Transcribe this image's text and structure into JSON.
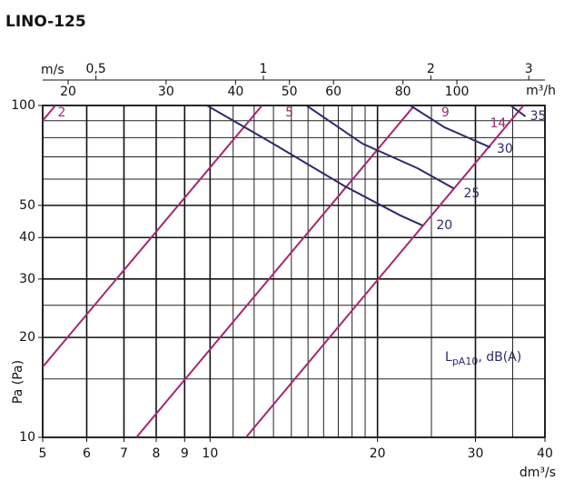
{
  "chart_data": {
    "type": "line",
    "title": "LINO-125",
    "x_label": "dm³/s",
    "y_label": "Pa (Pa)",
    "x2_label": "m/s",
    "x3_label": "m³/h",
    "log_x": true,
    "log_y": true,
    "grid": true,
    "xlim": [
      5,
      40
    ],
    "xticks": [
      5,
      6,
      7,
      8,
      9,
      10,
      20,
      30,
      40
    ],
    "xminor": [
      11,
      12,
      13,
      14,
      15,
      16,
      17,
      18,
      19,
      25,
      35
    ],
    "ylim": [
      10,
      100
    ],
    "yticks": [
      10,
      20,
      30,
      40,
      50,
      100
    ],
    "yminor": [
      15,
      25,
      60,
      70,
      80,
      90
    ],
    "x2lim": [
      0.401,
      3.208
    ],
    "x2ticks": [
      {
        "value": 0.5,
        "label": "0,5"
      },
      1,
      2,
      3
    ],
    "x3lim": [
      18,
      144
    ],
    "x3ticks": [
      20,
      30,
      40,
      50,
      60,
      80,
      100
    ],
    "annotation": {
      "main": "L",
      "sub": "pA10",
      "rest": ", dB(A)",
      "color": "#2e2a6b"
    },
    "series": [
      {
        "name": "2",
        "color": "#a3286e",
        "x": [
          5,
          5.27
        ],
        "values": [
          90,
          100
        ]
      },
      {
        "name": "5",
        "color": "#a3286e",
        "x": [
          5,
          12.4
        ],
        "values": [
          16.3,
          100
        ]
      },
      {
        "name": "9",
        "color": "#a3286e",
        "x": [
          7.37,
          23.3
        ],
        "values": [
          10,
          100
        ]
      },
      {
        "name": "14",
        "color": "#a3286e",
        "x": [
          11.6,
          36.6
        ],
        "values": [
          10,
          100
        ]
      },
      {
        "name": "20",
        "color": "#2e2a6b",
        "x": [
          9.87,
          12.9,
          17.5,
          22.0,
          24.1
        ],
        "values": [
          100,
          77.2,
          57.0,
          46.6,
          43.5
        ]
      },
      {
        "name": "25",
        "color": "#2e2a6b",
        "x": [
          14.9,
          18.8,
          23.6,
          27.4
        ],
        "values": [
          100,
          76.7,
          64.7,
          56.3
        ]
      },
      {
        "name": "30",
        "color": "#2e2a6b",
        "x": [
          22.9,
          26.4,
          31.9
        ],
        "values": [
          100,
          85.9,
          74.8
        ]
      },
      {
        "name": "35",
        "color": "#2e2a6b",
        "x": [
          34.7,
          36.9
        ],
        "values": [
          100,
          92.7
        ]
      }
    ]
  }
}
